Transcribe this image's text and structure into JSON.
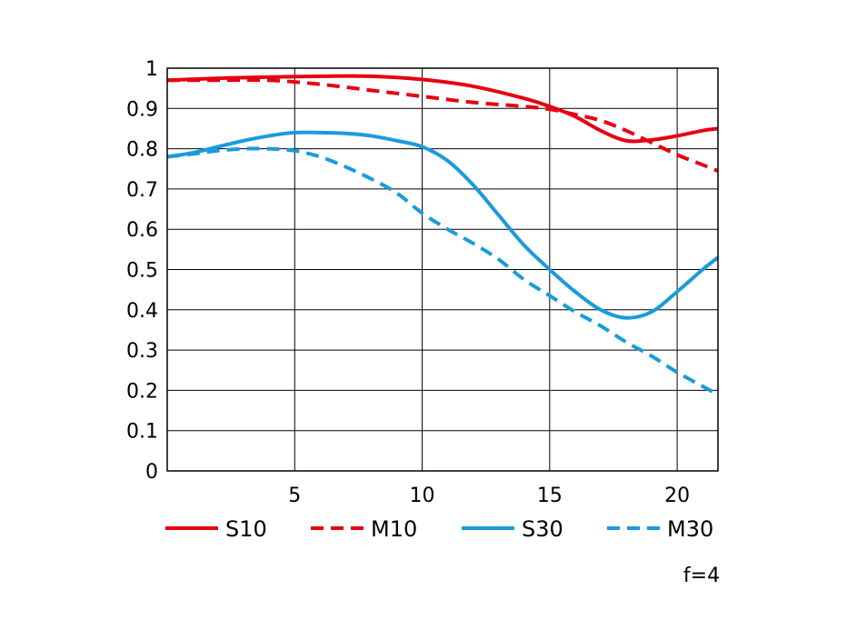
{
  "chart_data": {
    "type": "line",
    "title": "",
    "xlabel": "",
    "ylabel": "",
    "xlim": [
      0,
      21.6
    ],
    "ylim": [
      0,
      1
    ],
    "grid": true,
    "legend_position": "bottom",
    "x_ticks": [
      {
        "value": 5,
        "label": "5"
      },
      {
        "value": 10,
        "label": "10"
      },
      {
        "value": 15,
        "label": "15"
      },
      {
        "value": 20,
        "label": "20"
      }
    ],
    "y_ticks": [
      {
        "value": 0,
        "label": "0"
      },
      {
        "value": 0.1,
        "label": "0.1"
      },
      {
        "value": 0.2,
        "label": "0.2"
      },
      {
        "value": 0.3,
        "label": "0.3"
      },
      {
        "value": 0.4,
        "label": "0.4"
      },
      {
        "value": 0.5,
        "label": "0.5"
      },
      {
        "value": 0.6,
        "label": "0.6"
      },
      {
        "value": 0.7,
        "label": "0.7"
      },
      {
        "value": 0.8,
        "label": "0.8"
      },
      {
        "value": 0.9,
        "label": "0.9"
      },
      {
        "value": 1,
        "label": "1"
      }
    ],
    "series": [
      {
        "name": "S10",
        "color": "#e60012",
        "dashed": false,
        "x": [
          0,
          2,
          4,
          6,
          8,
          10,
          12,
          14,
          15,
          16,
          17,
          18,
          19,
          20,
          21,
          21.6
        ],
        "y": [
          0.97,
          0.975,
          0.978,
          0.98,
          0.98,
          0.972,
          0.955,
          0.925,
          0.905,
          0.88,
          0.845,
          0.82,
          0.822,
          0.832,
          0.845,
          0.85
        ]
      },
      {
        "name": "M10",
        "color": "#e60012",
        "dashed": true,
        "x": [
          0,
          2,
          4,
          6,
          8,
          10,
          12,
          14,
          15,
          16,
          17,
          18,
          19,
          20,
          21,
          21.6
        ],
        "y": [
          0.97,
          0.97,
          0.97,
          0.96,
          0.945,
          0.93,
          0.915,
          0.905,
          0.898,
          0.885,
          0.87,
          0.845,
          0.815,
          0.785,
          0.76,
          0.745
        ]
      },
      {
        "name": "S30",
        "color": "#1a9bdb",
        "dashed": false,
        "x": [
          0,
          1,
          2,
          3,
          4,
          5,
          6,
          7,
          8,
          9,
          10,
          11,
          12,
          13,
          14,
          15,
          16,
          17,
          18,
          19,
          20,
          21,
          21.6
        ],
        "y": [
          0.78,
          0.79,
          0.805,
          0.82,
          0.832,
          0.84,
          0.84,
          0.838,
          0.832,
          0.82,
          0.805,
          0.77,
          0.71,
          0.635,
          0.56,
          0.5,
          0.445,
          0.4,
          0.38,
          0.395,
          0.445,
          0.5,
          0.53
        ]
      },
      {
        "name": "M30",
        "color": "#1a9bdb",
        "dashed": true,
        "x": [
          0,
          1,
          2,
          3,
          4,
          5,
          6,
          7,
          8,
          9,
          10,
          11,
          12,
          13,
          14,
          15,
          16,
          17,
          18,
          19,
          20,
          21,
          21.6
        ],
        "y": [
          0.78,
          0.787,
          0.795,
          0.8,
          0.8,
          0.795,
          0.78,
          0.755,
          0.725,
          0.69,
          0.64,
          0.6,
          0.565,
          0.525,
          0.475,
          0.435,
          0.395,
          0.36,
          0.32,
          0.285,
          0.245,
          0.21,
          0.19
        ]
      }
    ],
    "annotation": "f=4"
  }
}
